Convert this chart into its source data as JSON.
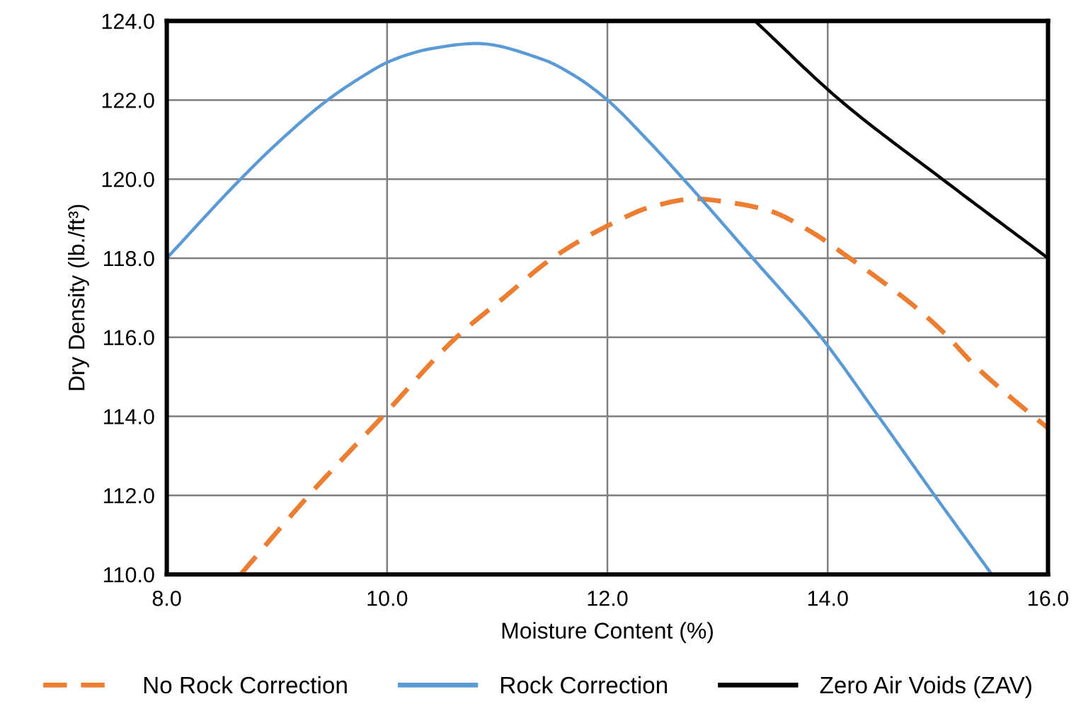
{
  "chart_data": {
    "type": "line",
    "xlabel": "Moisture Content (%)",
    "ylabel": "Dry Density (lb./ft³)",
    "xlim": [
      8,
      16
    ],
    "xticks": [
      {
        "value": 8,
        "label": "8.0"
      },
      {
        "value": 10,
        "label": "10.0"
      },
      {
        "value": 12,
        "label": "12.0"
      },
      {
        "value": 14,
        "label": "14.0"
      },
      {
        "value": 16,
        "label": "16.0"
      }
    ],
    "ylim": [
      110,
      124
    ],
    "yticks": [
      {
        "value": 110,
        "label": "110.0"
      },
      {
        "value": 112,
        "label": "112.0"
      },
      {
        "value": 114,
        "label": "114.0"
      },
      {
        "value": 116,
        "label": "116.0"
      },
      {
        "value": 118,
        "label": "118.0"
      },
      {
        "value": 120,
        "label": "120.0"
      },
      {
        "value": 122,
        "label": "122.0"
      },
      {
        "value": 124,
        "label": "124.0"
      }
    ],
    "grid": true,
    "legend": "bottom",
    "marker": "none",
    "series": [
      {
        "name": "No Rock Correction",
        "color": "#ed7d31",
        "line_style": "dashed",
        "x": [
          8.67,
          9.29,
          9.96,
          10.63,
          11.06,
          11.5,
          12.06,
          12.4,
          12.8,
          13.13,
          13.47,
          13.83,
          14.2,
          14.5,
          14.78,
          15.06,
          15.33,
          15.61,
          16.0
        ],
        "values": [
          110.0,
          112.0,
          114.0,
          116.0,
          117.0,
          118.0,
          118.9,
          119.3,
          119.5,
          119.4,
          119.2,
          118.7,
          118.0,
          117.4,
          116.8,
          116.1,
          115.3,
          114.6,
          113.7
        ]
      },
      {
        "name": "Rock Correction",
        "color": "#5b9bd5",
        "line_style": "solid",
        "x": [
          8.0,
          8.67,
          9.0,
          9.46,
          9.75,
          10.0,
          10.2,
          10.4,
          10.81,
          11.41,
          11.71,
          12.0,
          12.36,
          12.69,
          13.32,
          13.94,
          14.46,
          14.97,
          15.49
        ],
        "values": [
          118.0,
          120.0,
          120.9,
          122.0,
          122.55,
          122.95,
          123.16,
          123.3,
          123.43,
          123.03,
          122.6,
          122.0,
          121.0,
          120.0,
          118.0,
          116.0,
          114.0,
          112.0,
          110.0
        ]
      },
      {
        "name": "Zero Air Voids (ZAV)",
        "color": "#000000",
        "line_style": "solid",
        "x": [
          13.34,
          14.11,
          15.04,
          16.0
        ],
        "values": [
          124.0,
          122.0,
          120.0,
          118.0
        ]
      }
    ]
  }
}
